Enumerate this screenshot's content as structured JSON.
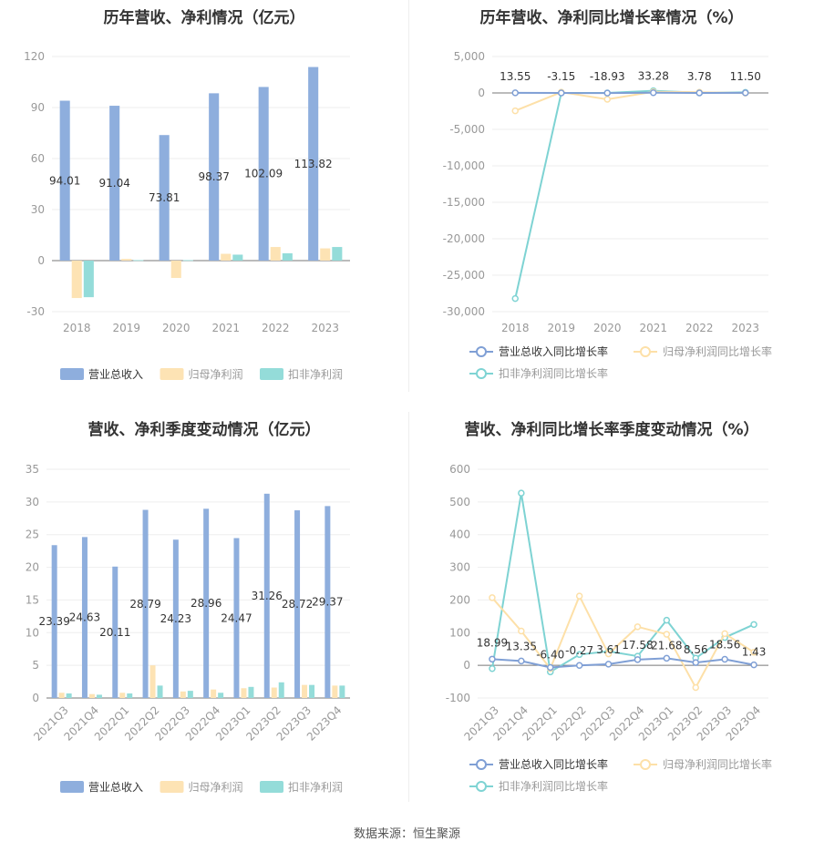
{
  "source_text": "数据来源：恒生聚源",
  "colors": {
    "revenue": "#8eaedd",
    "parent_np": "#fde3b4",
    "deducted_np": "#94dcd9",
    "revenue_line": "#7f9fd5",
    "parent_line": "#fde0a8",
    "deducted_line": "#7ed3d3",
    "axis": "#999999",
    "grid": "#eeeeee"
  },
  "chart_data": [
    {
      "type": "bar",
      "title": "历年营收、净利情况（亿元）",
      "categories": [
        "2018",
        "2019",
        "2020",
        "2021",
        "2022",
        "2023"
      ],
      "ylim": [
        -30,
        120
      ],
      "yticks": [
        -30,
        0,
        30,
        60,
        90,
        120
      ],
      "grid": true,
      "legend_position": "bottom",
      "series": [
        {
          "name": "营业总收入",
          "values": [
            94.01,
            91.04,
            73.81,
            98.37,
            102.09,
            113.82
          ],
          "labels": [
            "94.01",
            "91.04",
            "73.81",
            "98.37",
            "102.09",
            "113.82"
          ]
        },
        {
          "name": "归母净利润",
          "values": [
            -22.0,
            1.0,
            -10.2,
            4.0,
            8.0,
            7.2
          ]
        },
        {
          "name": "扣非净利润",
          "values": [
            -21.5,
            0.3,
            0.3,
            3.5,
            4.3,
            8.0
          ]
        }
      ]
    },
    {
      "type": "line",
      "title": "历年营收、净利同比增长率情况（%）",
      "categories": [
        "2018",
        "2019",
        "2020",
        "2021",
        "2022",
        "2023"
      ],
      "ylim": [
        -30000,
        5000
      ],
      "yticks": [
        -30000,
        -25000,
        -20000,
        -15000,
        -10000,
        -5000,
        0,
        5000
      ],
      "ytick_labels": [
        "-30,000",
        "-25,000",
        "-20,000",
        "-15,000",
        "-10,000",
        "-5,000",
        "0",
        "5,000"
      ],
      "grid": true,
      "legend_position": "bottom",
      "series": [
        {
          "name": "营业总收入同比增长率",
          "values": [
            13.55,
            -3.15,
            -18.93,
            33.28,
            3.78,
            11.5
          ],
          "labels": [
            "13.55",
            "-3.15",
            "-18.93",
            "33.28",
            "3.78",
            "11.50"
          ]
        },
        {
          "name": "归母净利润同比增长率",
          "values": [
            -2450,
            104,
            -870,
            160,
            100,
            -10
          ]
        },
        {
          "name": "扣非净利润同比增长率",
          "values": [
            -28200,
            0,
            0,
            300,
            20,
            80
          ]
        }
      ]
    },
    {
      "type": "bar",
      "title": "营收、净利季度变动情况（亿元）",
      "categories": [
        "2021Q3",
        "2021Q4",
        "2022Q1",
        "2022Q2",
        "2022Q3",
        "2022Q4",
        "2023Q1",
        "2023Q2",
        "2023Q3",
        "2023Q4"
      ],
      "ylim": [
        0,
        35
      ],
      "yticks": [
        0,
        5,
        10,
        15,
        20,
        25,
        30,
        35
      ],
      "grid": true,
      "legend_position": "bottom",
      "series": [
        {
          "name": "营业总收入",
          "values": [
            23.39,
            24.63,
            20.11,
            28.79,
            24.23,
            28.96,
            24.47,
            31.26,
            28.72,
            29.37
          ],
          "labels": [
            "23.39",
            "24.63",
            "20.11",
            "28.79",
            "24.23",
            "28.96",
            "24.47",
            "31.26",
            "28.72",
            "29.37"
          ]
        },
        {
          "name": "归母净利润",
          "values": [
            0.8,
            0.6,
            0.8,
            5.0,
            1.0,
            1.3,
            1.5,
            1.6,
            2.0,
            1.9
          ]
        },
        {
          "name": "扣非净利润",
          "values": [
            0.7,
            0.5,
            0.7,
            1.9,
            1.1,
            0.8,
            1.7,
            2.4,
            2.0,
            1.9
          ]
        }
      ]
    },
    {
      "type": "line",
      "title": "营收、净利同比增长率季度变动情况（%）",
      "categories": [
        "2021Q3",
        "2021Q4",
        "2022Q1",
        "2022Q2",
        "2022Q3",
        "2022Q4",
        "2023Q1",
        "2023Q2",
        "2023Q3",
        "2023Q4"
      ],
      "ylim": [
        -100,
        600
      ],
      "yticks": [
        -100,
        0,
        100,
        200,
        300,
        400,
        500,
        600
      ],
      "grid": true,
      "legend_position": "bottom",
      "series": [
        {
          "name": "营业总收入同比增长率",
          "values": [
            18.99,
            13.35,
            -6.4,
            -0.27,
            3.61,
            17.58,
            21.68,
            8.56,
            18.56,
            1.43
          ],
          "labels": [
            "18.99",
            "13.35",
            "-6.40",
            "-0.27",
            "3.61",
            "17.58",
            "21.68",
            "8.56",
            "18.56",
            "1.43"
          ]
        },
        {
          "name": "归母净利润同比增长率",
          "values": [
            207,
            105,
            -10,
            212,
            35,
            118,
            95,
            -68,
            97,
            40
          ]
        },
        {
          "name": "扣非净利润同比增长率",
          "values": [
            -10,
            527,
            -20,
            33,
            43,
            28,
            138,
            22,
            85,
            125
          ]
        }
      ]
    }
  ]
}
